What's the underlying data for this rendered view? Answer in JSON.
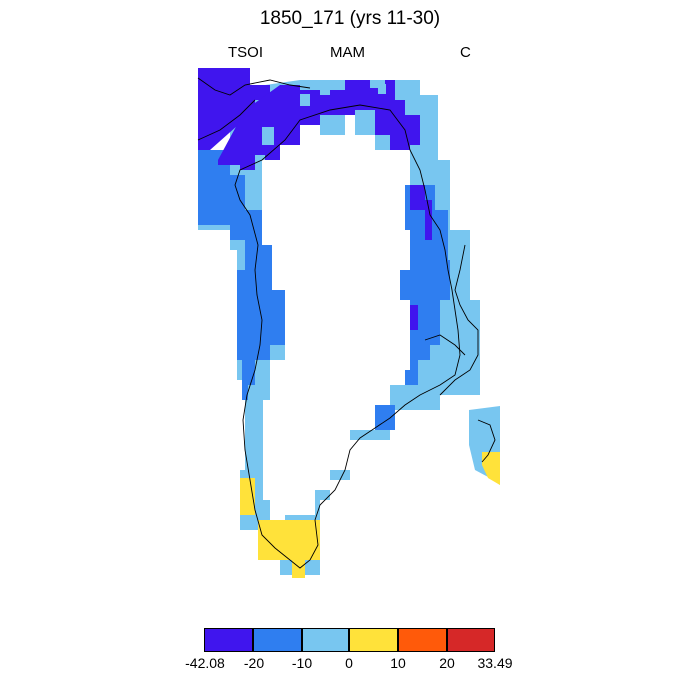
{
  "title": "1850_171 (yrs 11-30)",
  "subtitle": {
    "left": "TSOI",
    "center": "MAM",
    "right": "C"
  },
  "colorbar": {
    "colors": [
      "#4015ee",
      "#2f7ef0",
      "#78c6f0",
      "#ffe23a",
      "#ff5a0a",
      "#d62828"
    ],
    "labels": [
      "-42.08",
      "-20",
      "-10",
      "0",
      "10",
      "20",
      "33.49"
    ]
  },
  "chart_data": {
    "type": "heatmap",
    "title": "1850_171 (yrs 11-30)",
    "variable": "TSOI",
    "season": "MAM",
    "units": "C",
    "levels": [
      -42.08,
      -20,
      -10,
      0,
      10,
      20,
      33.49
    ],
    "dominant_regions": [
      {
        "region": "north",
        "bin": "-42.08 to -20"
      },
      {
        "region": "west and east coasts",
        "bin": "-20 to -10"
      },
      {
        "region": "south",
        "bin": "-10 to 0"
      },
      {
        "region": "southern tip",
        "bin": "0 to 10"
      }
    ]
  }
}
